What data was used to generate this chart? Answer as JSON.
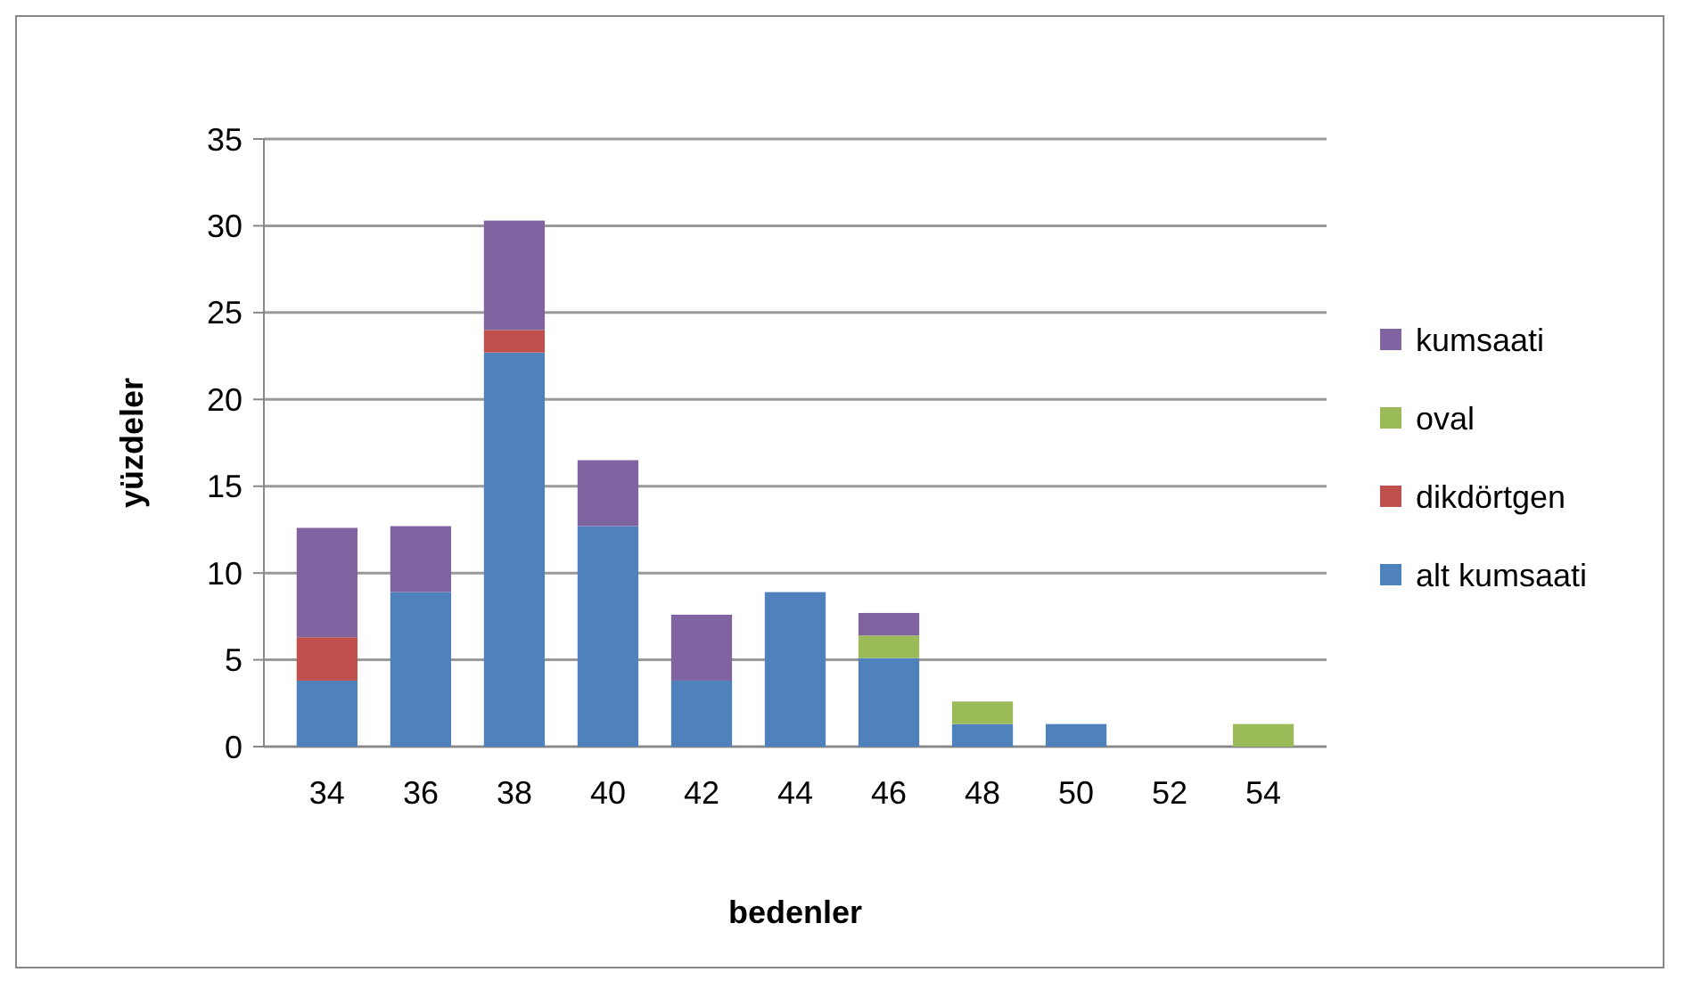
{
  "chart_data": {
    "type": "bar",
    "stacked": true,
    "xlabel": "bedenler",
    "ylabel": "yüzdeler",
    "categories": [
      "34",
      "36",
      "38",
      "40",
      "42",
      "44",
      "46",
      "48",
      "50",
      "52",
      "54"
    ],
    "series": [
      {
        "name": "alt kumsaati",
        "color": "#4f81bd",
        "values": [
          3.8,
          8.9,
          22.7,
          12.7,
          3.8,
          8.9,
          5.1,
          1.3,
          1.3,
          0,
          0
        ]
      },
      {
        "name": "dikdörtgen",
        "color": "#c0504d",
        "values": [
          2.5,
          0,
          1.3,
          0,
          0,
          0,
          0,
          0,
          0,
          0,
          0
        ]
      },
      {
        "name": "oval",
        "color": "#9bbb59",
        "values": [
          0,
          0,
          0,
          0,
          0,
          0,
          1.3,
          1.3,
          0,
          0,
          1.3
        ]
      },
      {
        "name": "kumsaati",
        "color": "#8064a2",
        "values": [
          6.3,
          3.8,
          6.3,
          3.8,
          3.8,
          0,
          1.3,
          0,
          0,
          0,
          0
        ]
      }
    ],
    "ylim": [
      0,
      35
    ],
    "yticks": [
      0,
      5,
      10,
      15,
      20,
      25,
      30,
      35
    ],
    "grid": "y",
    "legend": "right"
  }
}
